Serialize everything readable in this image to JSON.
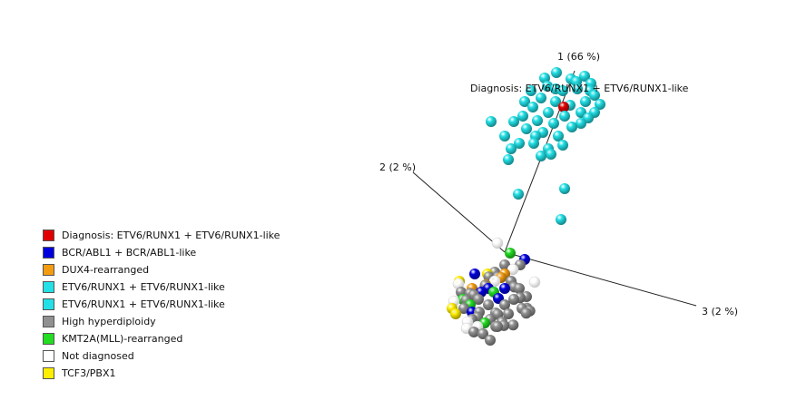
{
  "chart_data": {
    "type": "scatter",
    "projection": "3d-pca",
    "axes": [
      {
        "id": "axis-1",
        "label": "1 (66 %)"
      },
      {
        "id": "axis-2",
        "label": "2 (2 %)"
      },
      {
        "id": "axis-3",
        "label": "3 (2 %)"
      }
    ],
    "annotation": "Diagnosis: ETV6/RUNX1 + ETV6/RUNX1-like",
    "legend": {
      "placement": "bottom-left",
      "items": [
        {
          "label": "Diagnosis: ETV6/RUNX1 + ETV6/RUNX1-like",
          "color": "#e00000"
        },
        {
          "label": "BCR/ABL1 + BCR/ABL1-like",
          "color": "#0000dd"
        },
        {
          "label": "DUX4-rearranged",
          "color": "#f39c12"
        },
        {
          "label": "ETV6/RUNX1 + ETV6/RUNX1-like",
          "color": "#22e0e6"
        },
        {
          "label": "ETV6/RUNX1 + ETV6/RUNX1-like",
          "color": "#22e0e6"
        },
        {
          "label": "High hyperdiploidy",
          "color": "#909090"
        },
        {
          "label": "KMT2A(MLL)-rearranged",
          "color": "#22dd22"
        },
        {
          "label": "Not diagnosed",
          "color": "#ffffff"
        },
        {
          "label": "TCF3/PBX1",
          "color": "#ffee00"
        }
      ]
    },
    "point_groups": [
      {
        "name": "ETV6/RUNX1 + ETV6/RUNX1-like",
        "color": "#22e0e6",
        "count": 48
      },
      {
        "name": "Diagnosis: ETV6/RUNX1 + ETV6/RUNX1-like",
        "color": "#e00000",
        "count": 1
      },
      {
        "name": "High hyperdiploidy",
        "color": "#909090",
        "count": 38
      },
      {
        "name": "BCR/ABL1 + BCR/ABL1-like",
        "color": "#0000dd",
        "count": 7
      },
      {
        "name": "DUX4-rearranged",
        "color": "#f39c12",
        "count": 5
      },
      {
        "name": "KMT2A(MLL)-rearranged",
        "color": "#22dd22",
        "count": 5
      },
      {
        "name": "Not diagnosed",
        "color": "#ffffff",
        "count": 10
      },
      {
        "name": "TCF3/PBX1",
        "color": "#ffee00",
        "count": 5
      }
    ]
  }
}
